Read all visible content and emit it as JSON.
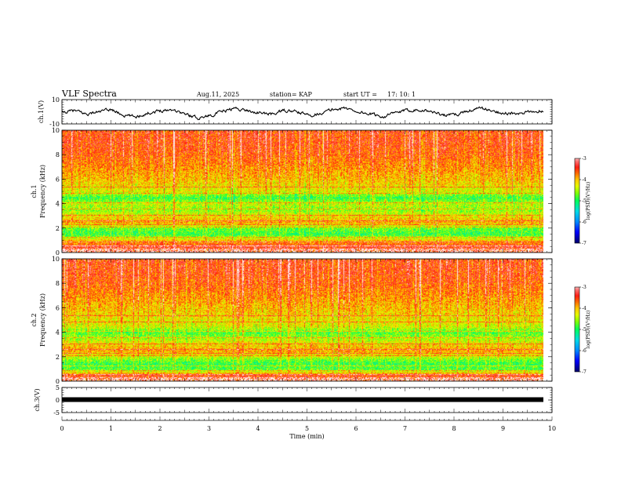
{
  "header": {
    "title": "VLF Spectra",
    "date": "Aug.11, 2025",
    "station": "station= KAP",
    "start_label": "start UT =",
    "start_time": "17: 10: 1"
  },
  "colors": {
    "spectrogram_scale": [
      "#000080",
      "#0000ff",
      "#00c8ff",
      "#00ff80",
      "#80ff00",
      "#ffff00",
      "#ff8000",
      "#ff0000",
      "#ff8080",
      "#ffffff"
    ],
    "waveform": "#000000"
  },
  "chart_data": [
    {
      "type": "line",
      "name": "ch1-waveform",
      "ylabel": "ch.1(V)",
      "ylim": [
        -10,
        10
      ],
      "yticks": [
        "10",
        "-10"
      ],
      "xlim": [
        0,
        10
      ],
      "description_series": "noisy time series oscillating roughly between -5 and 4 V",
      "series_approx": [
        -1,
        1,
        -2,
        0,
        2,
        -3,
        -4,
        -1,
        1,
        2,
        -2,
        -5,
        -3,
        0,
        3,
        1,
        -1,
        -2,
        1,
        0,
        -3,
        -1,
        2,
        3,
        0,
        -2,
        -4,
        -1,
        1,
        2,
        0,
        -3,
        -2,
        1,
        3,
        0,
        -1,
        -2,
        0,
        1
      ]
    },
    {
      "type": "heatmap",
      "name": "ch1-spectrogram",
      "ylabel": "Frequency (kHz)",
      "channel_label": "ch.1",
      "ylim": [
        0,
        10
      ],
      "yticks": [
        "0",
        "2",
        "4",
        "6",
        "8",
        "10"
      ],
      "xlim": [
        0,
        10
      ],
      "colorbar": {
        "label": "log(PSD)(V²/Hz)",
        "range": [
          -7,
          -3
        ],
        "ticks": [
          "-3",
          "-4",
          "-5",
          "-6",
          "-7"
        ]
      },
      "band_profile_log_psd": [
        [
          0.5,
          -3.4
        ],
        [
          1.0,
          -4.0
        ],
        [
          1.5,
          -4.9
        ],
        [
          2.0,
          -4.7
        ],
        [
          2.5,
          -3.9
        ],
        [
          3.0,
          -4.2
        ],
        [
          3.5,
          -4.6
        ],
        [
          4.0,
          -4.4
        ],
        [
          4.5,
          -4.9
        ],
        [
          5.0,
          -4.3
        ],
        [
          6.0,
          -4.0
        ],
        [
          7.0,
          -3.8
        ],
        [
          8.0,
          -3.6
        ],
        [
          9.0,
          -3.5
        ],
        [
          10.0,
          -3.5
        ]
      ]
    },
    {
      "type": "heatmap",
      "name": "ch2-spectrogram",
      "ylabel": "Frequency (kHz)",
      "channel_label": "ch.2",
      "ylim": [
        0,
        10
      ],
      "yticks": [
        "0",
        "2",
        "4",
        "6",
        "8",
        "10"
      ],
      "xlim": [
        0,
        10
      ],
      "colorbar": {
        "label": "log(PSD)(V²/Hz)",
        "range": [
          -7,
          -3
        ],
        "ticks": [
          "-3",
          "-4",
          "-5",
          "-6",
          "-7"
        ]
      },
      "band_profile_log_psd": [
        [
          0.5,
          -3.5
        ],
        [
          1.0,
          -4.8
        ],
        [
          1.5,
          -4.9
        ],
        [
          2.0,
          -4.4
        ],
        [
          2.5,
          -3.9
        ],
        [
          3.0,
          -4.1
        ],
        [
          3.5,
          -4.5
        ],
        [
          4.0,
          -4.8
        ],
        [
          4.5,
          -4.3
        ],
        [
          5.0,
          -4.2
        ],
        [
          6.0,
          -4.0
        ],
        [
          7.0,
          -3.8
        ],
        [
          8.0,
          -3.6
        ],
        [
          9.0,
          -3.5
        ],
        [
          10.0,
          -3.5
        ]
      ]
    },
    {
      "type": "line",
      "name": "ch3-waveform",
      "ylabel": "ch.3(V)",
      "ylim": [
        -5,
        5
      ],
      "yticks": [
        "5",
        "0",
        "-5"
      ],
      "xlim": [
        0,
        10
      ],
      "series_approx_level": 0.0,
      "xlabel": "Time (min)",
      "xticks": [
        "0",
        "1",
        "2",
        "3",
        "4",
        "5",
        "6",
        "7",
        "8",
        "9",
        "10"
      ]
    }
  ]
}
